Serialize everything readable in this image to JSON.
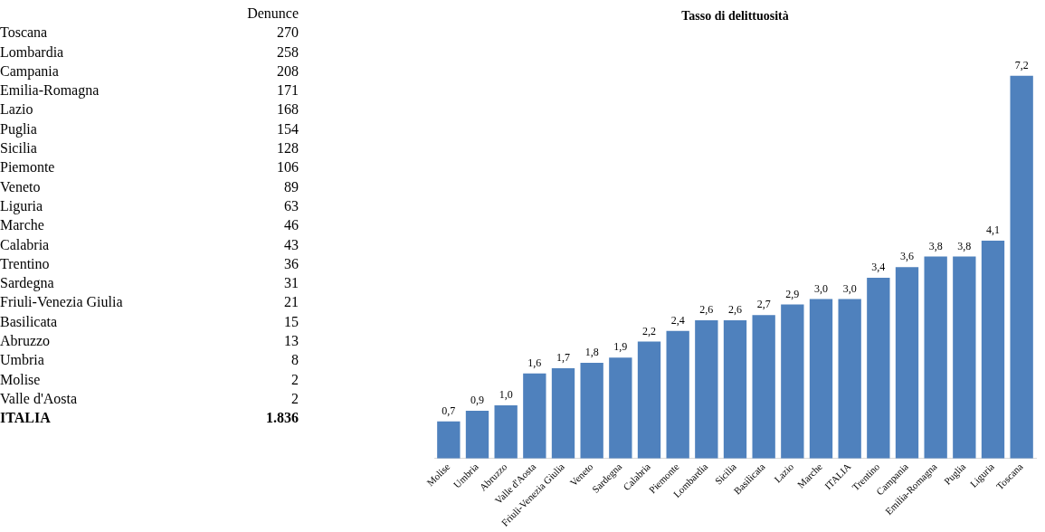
{
  "chart_data": [
    {
      "type": "other",
      "title": "Denunce",
      "categories": [
        "Toscana",
        "Lombardia",
        "Campania",
        "Emilia-Romagna",
        "Lazio",
        "Puglia",
        "Sicilia",
        "Piemonte",
        "Veneto",
        "Liguria",
        "Marche",
        "Calabria",
        "Trentino",
        "Sardegna",
        "Friuli-Venezia Giulia",
        "Basilicata",
        "Abruzzo",
        "Umbria",
        "Molise",
        "Valle d'Aosta",
        "ITALIA"
      ],
      "values": [
        270,
        258,
        208,
        171,
        168,
        154,
        128,
        106,
        89,
        63,
        46,
        43,
        36,
        31,
        21,
        15,
        13,
        8,
        2,
        2,
        1836
      ],
      "value_labels": [
        "270",
        "258",
        "208",
        "171",
        "168",
        "154",
        "128",
        "106",
        "89",
        "63",
        "46",
        "43",
        "36",
        "31",
        "21",
        "15",
        "13",
        "8",
        "2",
        "2",
        "1.836"
      ]
    },
    {
      "type": "bar",
      "title": "Tasso di delittuosità",
      "categories": [
        "Molise",
        "Umbria",
        "Abruzzo",
        "Valle d'Aosta",
        "Friuli-Venezia Giulia",
        "Veneto",
        "Sardegna",
        "Calabria",
        "Piemonte",
        "Lombardia",
        "Sicilia",
        "Basilicata",
        "Lazio",
        "Marche",
        "ITALIA",
        "Trentino",
        "Campania",
        "Emilia-Romagna",
        "Puglia",
        "Liguria",
        "Toscana"
      ],
      "values": [
        0.7,
        0.9,
        1.0,
        1.6,
        1.7,
        1.8,
        1.9,
        2.2,
        2.4,
        2.6,
        2.6,
        2.7,
        2.9,
        3.0,
        3.0,
        3.4,
        3.6,
        3.8,
        3.8,
        4.1,
        7.2
      ],
      "value_labels": [
        "0,7",
        "0,9",
        "1,0",
        "1,6",
        "1,7",
        "1,8",
        "1,9",
        "2,2",
        "2,4",
        "2,6",
        "2,6",
        "2,7",
        "2,9",
        "3,0",
        "3,0",
        "3,4",
        "3,6",
        "3,8",
        "3,8",
        "4,1",
        "7,2"
      ],
      "color": "#4f81bd",
      "grid": false,
      "legend": false,
      "tick_labels": "x"
    }
  ]
}
